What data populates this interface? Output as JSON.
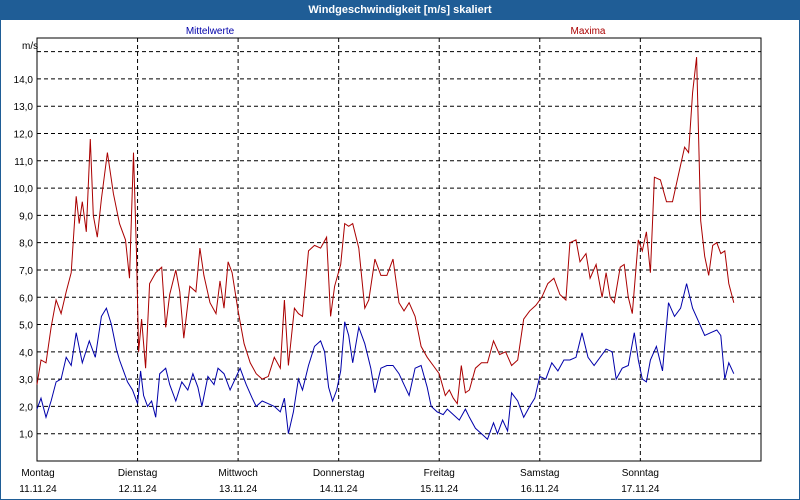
{
  "window": {
    "title": "Windgeschwindigkeit [m/s] skaliert"
  },
  "colors": {
    "mean": "#0000aa",
    "max": "#aa0000",
    "grid": "#000000",
    "title_bg": "#1f5d96"
  },
  "chart_data": {
    "type": "line",
    "title": "Windgeschwindigkeit [m/s] skaliert",
    "ylabel": "m/s",
    "ylim": [
      0,
      15.5
    ],
    "xlim": [
      0,
      7.2
    ],
    "grid": true,
    "y_ticks": [
      "1,0",
      "2,0",
      "3,0",
      "4,0",
      "5,0",
      "6,0",
      "7,0",
      "8,0",
      "9,0",
      "10,0",
      "11,0",
      "12,0",
      "13,0",
      "14,0"
    ],
    "x_ticks": [
      {
        "x": 0,
        "day": "Montag",
        "date": "11.11.24"
      },
      {
        "x": 1,
        "day": "Dienstag",
        "date": "12.11.24"
      },
      {
        "x": 2,
        "day": "Mittwoch",
        "date": "13.11.24"
      },
      {
        "x": 3,
        "day": "Donnerstag",
        "date": "14.11.24"
      },
      {
        "x": 4,
        "day": "Freitag",
        "date": "15.11.24"
      },
      {
        "x": 5,
        "day": "Samstag",
        "date": "16.11.24"
      },
      {
        "x": 6,
        "day": "Sonntag",
        "date": "17.11.24"
      }
    ],
    "series": [
      {
        "name": "Mittelwerte",
        "color": "#0000aa",
        "points": [
          [
            0.0,
            1.9
          ],
          [
            0.04,
            2.3
          ],
          [
            0.09,
            1.6
          ],
          [
            0.14,
            2.2
          ],
          [
            0.19,
            2.9
          ],
          [
            0.24,
            3.0
          ],
          [
            0.29,
            3.8
          ],
          [
            0.34,
            3.5
          ],
          [
            0.39,
            4.7
          ],
          [
            0.45,
            3.6
          ],
          [
            0.52,
            4.4
          ],
          [
            0.58,
            3.8
          ],
          [
            0.64,
            5.3
          ],
          [
            0.69,
            5.6
          ],
          [
            0.74,
            5.0
          ],
          [
            0.79,
            4.1
          ],
          [
            0.82,
            3.7
          ],
          [
            0.86,
            3.3
          ],
          [
            0.9,
            2.9
          ],
          [
            0.95,
            2.6
          ],
          [
            1.0,
            2.1
          ],
          [
            1.03,
            3.3
          ],
          [
            1.06,
            2.4
          ],
          [
            1.1,
            2.0
          ],
          [
            1.14,
            2.2
          ],
          [
            1.18,
            1.6
          ],
          [
            1.22,
            3.2
          ],
          [
            1.28,
            3.4
          ],
          [
            1.32,
            2.8
          ],
          [
            1.38,
            2.2
          ],
          [
            1.44,
            2.9
          ],
          [
            1.5,
            2.6
          ],
          [
            1.55,
            3.2
          ],
          [
            1.6,
            2.7
          ],
          [
            1.64,
            2.0
          ],
          [
            1.7,
            3.1
          ],
          [
            1.76,
            2.8
          ],
          [
            1.8,
            3.4
          ],
          [
            1.86,
            3.2
          ],
          [
            1.92,
            2.6
          ],
          [
            1.97,
            3.0
          ],
          [
            2.02,
            3.4
          ],
          [
            2.08,
            2.8
          ],
          [
            2.14,
            2.3
          ],
          [
            2.18,
            2.0
          ],
          [
            2.24,
            2.2
          ],
          [
            2.3,
            2.1
          ],
          [
            2.36,
            2.0
          ],
          [
            2.42,
            1.8
          ],
          [
            2.46,
            2.3
          ],
          [
            2.5,
            1.0
          ],
          [
            2.55,
            1.8
          ],
          [
            2.6,
            3.0
          ],
          [
            2.64,
            2.6
          ],
          [
            2.7,
            3.5
          ],
          [
            2.76,
            4.2
          ],
          [
            2.82,
            4.4
          ],
          [
            2.86,
            4.0
          ],
          [
            2.9,
            2.7
          ],
          [
            2.94,
            2.2
          ],
          [
            2.98,
            2.6
          ],
          [
            3.02,
            3.3
          ],
          [
            3.06,
            5.1
          ],
          [
            3.1,
            4.6
          ],
          [
            3.14,
            3.6
          ],
          [
            3.2,
            4.9
          ],
          [
            3.26,
            4.3
          ],
          [
            3.32,
            3.4
          ],
          [
            3.36,
            2.5
          ],
          [
            3.42,
            3.4
          ],
          [
            3.48,
            3.5
          ],
          [
            3.54,
            3.5
          ],
          [
            3.6,
            3.2
          ],
          [
            3.65,
            2.8
          ],
          [
            3.7,
            2.4
          ],
          [
            3.76,
            3.4
          ],
          [
            3.82,
            3.5
          ],
          [
            3.88,
            2.7
          ],
          [
            3.92,
            2.0
          ],
          [
            3.98,
            1.8
          ],
          [
            4.04,
            1.7
          ],
          [
            4.08,
            1.9
          ],
          [
            4.14,
            1.7
          ],
          [
            4.2,
            1.5
          ],
          [
            4.26,
            1.9
          ],
          [
            4.3,
            1.6
          ],
          [
            4.36,
            1.2
          ],
          [
            4.42,
            1.0
          ],
          [
            4.48,
            0.8
          ],
          [
            4.54,
            1.4
          ],
          [
            4.58,
            1.0
          ],
          [
            4.63,
            1.5
          ],
          [
            4.68,
            1.1
          ],
          [
            4.72,
            2.5
          ],
          [
            4.78,
            2.2
          ],
          [
            4.84,
            1.6
          ],
          [
            4.9,
            2.0
          ],
          [
            4.95,
            2.3
          ],
          [
            5.0,
            3.1
          ],
          [
            5.06,
            3.0
          ],
          [
            5.12,
            3.6
          ],
          [
            5.18,
            3.3
          ],
          [
            5.24,
            3.7
          ],
          [
            5.3,
            3.7
          ],
          [
            5.36,
            3.8
          ],
          [
            5.42,
            4.7
          ],
          [
            5.48,
            3.8
          ],
          [
            5.54,
            3.5
          ],
          [
            5.6,
            3.8
          ],
          [
            5.66,
            4.1
          ],
          [
            5.72,
            4.0
          ],
          [
            5.76,
            3.0
          ],
          [
            5.82,
            3.4
          ],
          [
            5.88,
            3.5
          ],
          [
            5.94,
            4.7
          ],
          [
            5.98,
            3.7
          ],
          [
            6.02,
            3.0
          ],
          [
            6.06,
            2.9
          ],
          [
            6.1,
            3.7
          ],
          [
            6.16,
            4.2
          ],
          [
            6.22,
            3.3
          ],
          [
            6.28,
            5.8
          ],
          [
            6.34,
            5.3
          ],
          [
            6.4,
            5.6
          ],
          [
            6.46,
            6.5
          ],
          [
            6.52,
            5.6
          ],
          [
            6.58,
            5.1
          ],
          [
            6.64,
            4.6
          ],
          [
            6.7,
            4.7
          ],
          [
            6.76,
            4.8
          ],
          [
            6.8,
            4.6
          ],
          [
            6.84,
            3.0
          ],
          [
            6.88,
            3.6
          ],
          [
            6.93,
            3.2
          ]
        ]
      },
      {
        "name": "Maxima",
        "color": "#aa0000",
        "points": [
          [
            0.0,
            2.8
          ],
          [
            0.04,
            3.7
          ],
          [
            0.09,
            3.6
          ],
          [
            0.14,
            4.9
          ],
          [
            0.19,
            5.9
          ],
          [
            0.24,
            5.4
          ],
          [
            0.29,
            6.2
          ],
          [
            0.34,
            6.9
          ],
          [
            0.39,
            9.7
          ],
          [
            0.42,
            8.7
          ],
          [
            0.45,
            9.5
          ],
          [
            0.49,
            8.4
          ],
          [
            0.53,
            11.8
          ],
          [
            0.56,
            9.0
          ],
          [
            0.6,
            8.2
          ],
          [
            0.64,
            9.6
          ],
          [
            0.7,
            11.3
          ],
          [
            0.76,
            9.8
          ],
          [
            0.82,
            8.7
          ],
          [
            0.88,
            8.1
          ],
          [
            0.92,
            6.7
          ],
          [
            0.96,
            11.3
          ],
          [
            0.99,
            7.6
          ],
          [
            1.01,
            4.0
          ],
          [
            1.04,
            5.2
          ],
          [
            1.08,
            3.4
          ],
          [
            1.12,
            6.5
          ],
          [
            1.18,
            6.9
          ],
          [
            1.24,
            7.1
          ],
          [
            1.28,
            4.9
          ],
          [
            1.32,
            6.1
          ],
          [
            1.38,
            7.0
          ],
          [
            1.42,
            6.2
          ],
          [
            1.46,
            4.5
          ],
          [
            1.52,
            6.4
          ],
          [
            1.58,
            6.2
          ],
          [
            1.62,
            7.8
          ],
          [
            1.66,
            6.8
          ],
          [
            1.72,
            5.8
          ],
          [
            1.78,
            5.4
          ],
          [
            1.82,
            6.6
          ],
          [
            1.86,
            5.6
          ],
          [
            1.9,
            7.3
          ],
          [
            1.94,
            6.9
          ],
          [
            2.0,
            5.5
          ],
          [
            2.06,
            4.3
          ],
          [
            2.12,
            3.6
          ],
          [
            2.18,
            3.2
          ],
          [
            2.24,
            3.0
          ],
          [
            2.3,
            3.1
          ],
          [
            2.36,
            3.8
          ],
          [
            2.42,
            3.4
          ],
          [
            2.46,
            5.9
          ],
          [
            2.5,
            3.5
          ],
          [
            2.56,
            5.6
          ],
          [
            2.6,
            5.4
          ],
          [
            2.64,
            5.3
          ],
          [
            2.7,
            7.7
          ],
          [
            2.76,
            7.9
          ],
          [
            2.82,
            7.8
          ],
          [
            2.88,
            8.2
          ],
          [
            2.92,
            5.3
          ],
          [
            2.96,
            6.4
          ],
          [
            3.02,
            7.2
          ],
          [
            3.06,
            8.7
          ],
          [
            3.1,
            8.6
          ],
          [
            3.14,
            8.7
          ],
          [
            3.2,
            7.8
          ],
          [
            3.26,
            5.6
          ],
          [
            3.3,
            5.9
          ],
          [
            3.36,
            7.4
          ],
          [
            3.42,
            6.8
          ],
          [
            3.48,
            6.8
          ],
          [
            3.54,
            7.4
          ],
          [
            3.6,
            5.8
          ],
          [
            3.65,
            5.5
          ],
          [
            3.7,
            5.8
          ],
          [
            3.76,
            5.3
          ],
          [
            3.82,
            4.2
          ],
          [
            3.88,
            3.8
          ],
          [
            3.94,
            3.5
          ],
          [
            4.0,
            3.2
          ],
          [
            4.06,
            2.4
          ],
          [
            4.1,
            2.6
          ],
          [
            4.14,
            2.3
          ],
          [
            4.18,
            2.1
          ],
          [
            4.22,
            3.5
          ],
          [
            4.26,
            2.5
          ],
          [
            4.3,
            2.6
          ],
          [
            4.36,
            3.4
          ],
          [
            4.42,
            3.6
          ],
          [
            4.48,
            3.6
          ],
          [
            4.54,
            4.4
          ],
          [
            4.6,
            3.9
          ],
          [
            4.66,
            4.0
          ],
          [
            4.72,
            3.5
          ],
          [
            4.78,
            3.7
          ],
          [
            4.84,
            5.2
          ],
          [
            4.9,
            5.5
          ],
          [
            4.96,
            5.7
          ],
          [
            5.02,
            6.0
          ],
          [
            5.08,
            6.5
          ],
          [
            5.14,
            6.7
          ],
          [
            5.2,
            6.1
          ],
          [
            5.26,
            5.9
          ],
          [
            5.3,
            8.0
          ],
          [
            5.36,
            8.1
          ],
          [
            5.4,
            7.3
          ],
          [
            5.46,
            7.6
          ],
          [
            5.5,
            6.7
          ],
          [
            5.56,
            7.2
          ],
          [
            5.62,
            6.0
          ],
          [
            5.66,
            6.9
          ],
          [
            5.7,
            6.0
          ],
          [
            5.74,
            5.8
          ],
          [
            5.8,
            7.1
          ],
          [
            5.84,
            7.2
          ],
          [
            5.88,
            6.0
          ],
          [
            5.92,
            5.4
          ],
          [
            5.98,
            8.1
          ],
          [
            6.02,
            7.7
          ],
          [
            6.06,
            8.4
          ],
          [
            6.1,
            6.9
          ],
          [
            6.14,
            10.4
          ],
          [
            6.2,
            10.3
          ],
          [
            6.26,
            9.5
          ],
          [
            6.32,
            9.5
          ],
          [
            6.38,
            10.5
          ],
          [
            6.44,
            11.5
          ],
          [
            6.48,
            11.3
          ],
          [
            6.52,
            13.5
          ],
          [
            6.56,
            14.8
          ],
          [
            6.6,
            8.8
          ],
          [
            6.64,
            7.5
          ],
          [
            6.68,
            6.8
          ],
          [
            6.72,
            7.9
          ],
          [
            6.76,
            8.0
          ],
          [
            6.8,
            7.6
          ],
          [
            6.84,
            7.7
          ],
          [
            6.88,
            6.5
          ],
          [
            6.93,
            5.8
          ]
        ]
      }
    ]
  }
}
